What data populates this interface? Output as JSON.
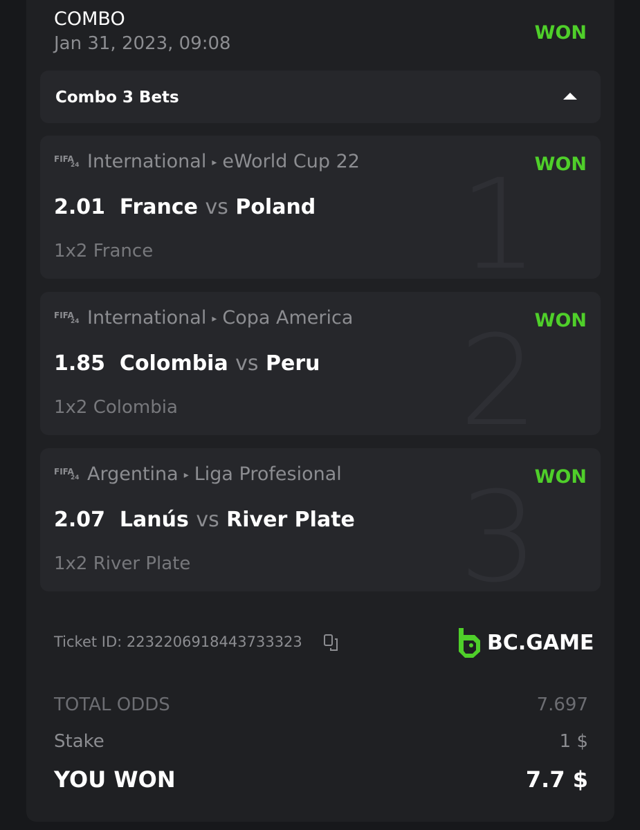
{
  "header": {
    "title": "COMBO",
    "date": "Jan 31, 2023, 09:08",
    "status": "WON"
  },
  "dropdown": {
    "label": "Combo 3 Bets",
    "icon": "caret-up-icon"
  },
  "legs": [
    {
      "number": "1",
      "game_badge": "FIFA",
      "game_badge_sub": "24",
      "region": "International",
      "league": "eWorld Cup 22",
      "status": "WON",
      "odds": "2.01",
      "home": "France",
      "vs": "vs",
      "away": "Poland",
      "market": "1x2 France"
    },
    {
      "number": "2",
      "game_badge": "FIFA",
      "game_badge_sub": "24",
      "region": "International",
      "league": "Copa America",
      "status": "WON",
      "odds": "1.85",
      "home": "Colombia",
      "vs": "vs",
      "away": "Peru",
      "market": "1x2 Colombia"
    },
    {
      "number": "3",
      "game_badge": "FIFA",
      "game_badge_sub": "24",
      "region": "Argentina",
      "league": "Liga Profesional",
      "status": "WON",
      "odds": "2.07",
      "home": "Lanús",
      "vs": "vs",
      "away": "River Plate",
      "market": "1x2 River Plate"
    }
  ],
  "ticket": {
    "label": "Ticket ID: 2232206918443733323",
    "copy_icon": "copy-icon"
  },
  "brand": {
    "name": "BC.GAME",
    "color": "#4fcf2a"
  },
  "summary": {
    "total_odds_label": "TOTAL ODDS",
    "total_odds": "7.697",
    "stake_label": "Stake",
    "stake": "1 $",
    "won_label": "YOU WON",
    "won": "7.7 $"
  },
  "colors": {
    "won": "#4fcf2a"
  }
}
